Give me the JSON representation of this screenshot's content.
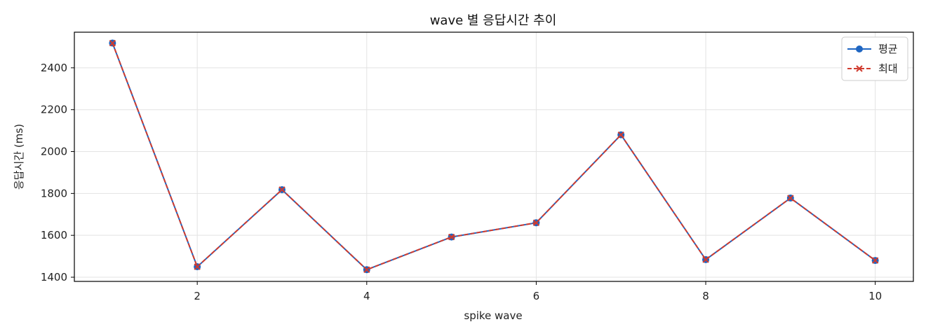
{
  "chart_data": {
    "type": "line",
    "title": "wave 별 응답시간 추이",
    "xlabel": "spike wave",
    "ylabel": "응답시간 (ms)",
    "x": [
      1,
      2,
      3,
      4,
      5,
      6,
      7,
      8,
      9,
      10
    ],
    "xlim": [
      0.55,
      10.45
    ],
    "ylim": [
      1380,
      2570
    ],
    "xticks": [
      2,
      4,
      6,
      8,
      10
    ],
    "yticks": [
      1400,
      1600,
      1800,
      2000,
      2200,
      2400
    ],
    "grid": true,
    "legend_position": "top-right",
    "series": [
      {
        "name": "평균",
        "values": [
          2518,
          1450,
          1818,
          1436,
          1592,
          1660,
          2080,
          1484,
          1778,
          1480
        ],
        "color": "#1f66c2",
        "marker": "circle",
        "linestyle": "solid"
      },
      {
        "name": "최대",
        "values": [
          2518,
          1450,
          1818,
          1436,
          1592,
          1660,
          2080,
          1484,
          1778,
          1480
        ],
        "color": "#d03b2f",
        "marker": "x",
        "linestyle": "dashed"
      }
    ]
  }
}
